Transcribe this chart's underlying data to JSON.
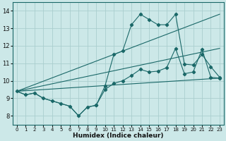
{
  "title": "",
  "xlabel": "Humidex (Indice chaleur)",
  "ylabel": "",
  "bg_color": "#cce8e8",
  "grid_color": "#aacece",
  "line_color": "#1a6868",
  "xlim": [
    -0.5,
    23.5
  ],
  "ylim": [
    7.5,
    14.5
  ],
  "xticks": [
    0,
    1,
    2,
    3,
    4,
    5,
    6,
    7,
    8,
    9,
    10,
    11,
    12,
    13,
    14,
    15,
    16,
    17,
    18,
    19,
    20,
    21,
    22,
    23
  ],
  "yticks": [
    8,
    9,
    10,
    11,
    12,
    13,
    14
  ],
  "jagged_line": {
    "x": [
      0,
      1,
      2,
      3,
      4,
      5,
      6,
      7,
      8,
      9,
      10,
      11,
      12,
      13,
      14,
      15,
      16,
      17,
      18,
      19,
      20,
      21,
      22,
      23
    ],
    "y": [
      9.4,
      9.2,
      9.3,
      9.0,
      8.85,
      8.7,
      8.55,
      8.0,
      8.5,
      8.6,
      9.7,
      11.5,
      11.7,
      13.2,
      13.8,
      13.5,
      13.2,
      13.2,
      13.8,
      10.95,
      10.9,
      11.5,
      10.8,
      10.2
    ]
  },
  "smooth_line": {
    "x": [
      0,
      1,
      2,
      3,
      4,
      5,
      6,
      7,
      8,
      9,
      10,
      11,
      12,
      13,
      14,
      15,
      16,
      17,
      18,
      19,
      20,
      21,
      22,
      23
    ],
    "y": [
      9.4,
      9.2,
      9.3,
      9.0,
      8.85,
      8.7,
      8.55,
      8.0,
      8.5,
      8.6,
      9.5,
      9.85,
      10.0,
      10.3,
      10.65,
      10.5,
      10.55,
      10.75,
      11.85,
      10.4,
      10.5,
      11.8,
      10.2,
      10.15
    ]
  },
  "diagonal_lines": [
    {
      "x": [
        0,
        23
      ],
      "y": [
        9.4,
        10.15
      ]
    },
    {
      "x": [
        0,
        23
      ],
      "y": [
        9.4,
        11.85
      ]
    },
    {
      "x": [
        0,
        23
      ],
      "y": [
        9.4,
        13.8
      ]
    }
  ]
}
